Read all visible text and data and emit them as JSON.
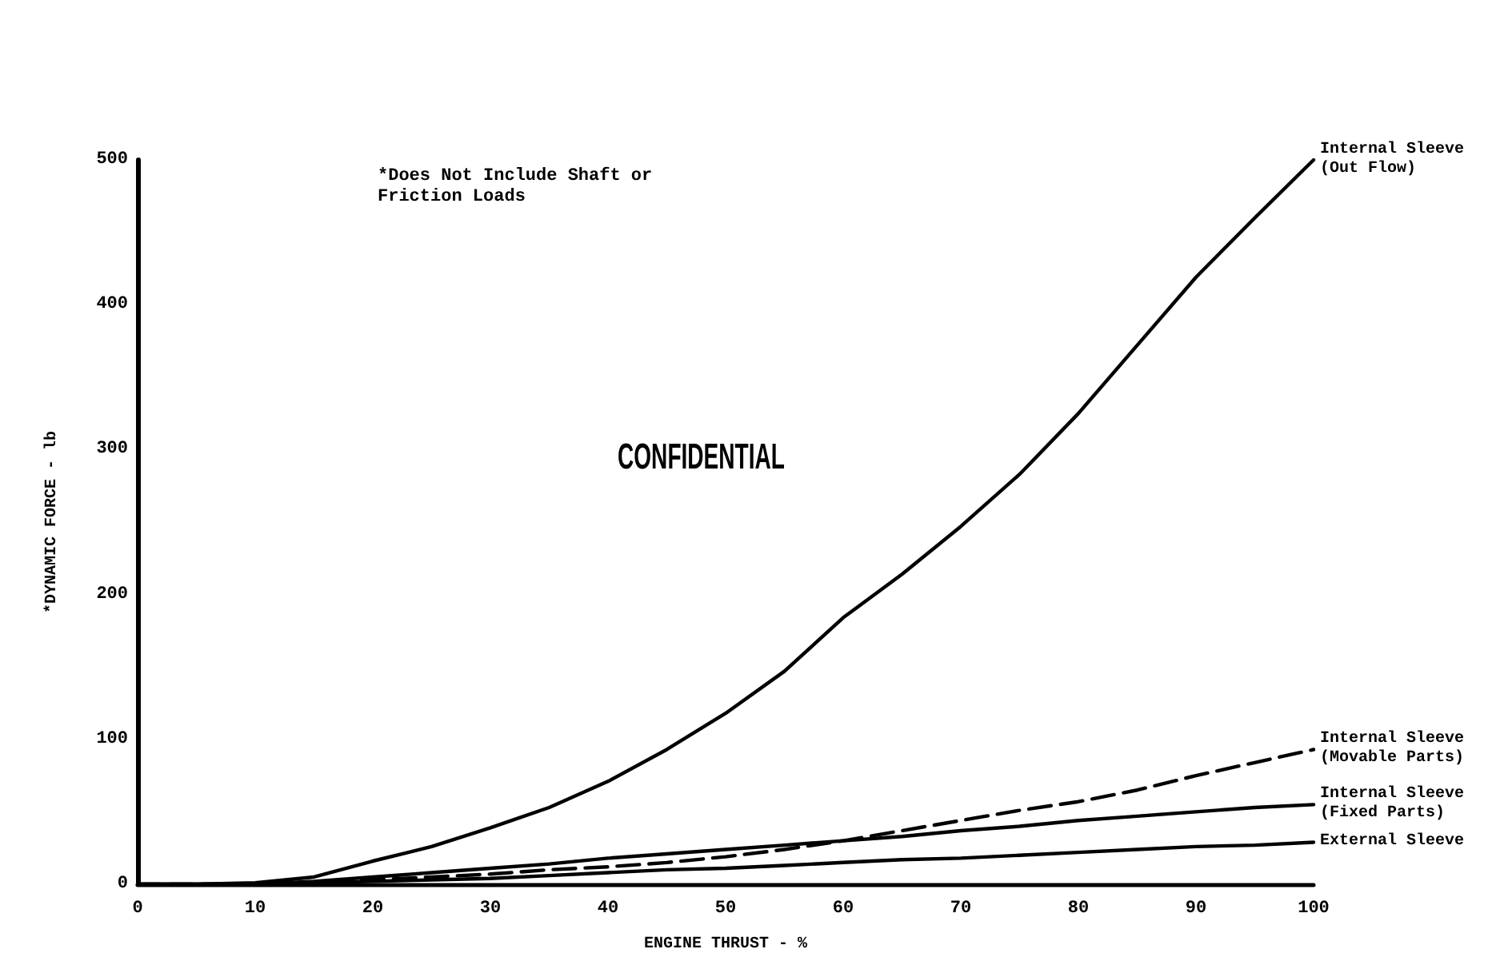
{
  "chart_data": {
    "type": "line",
    "xlabel": "ENGINE THRUST - %",
    "ylabel": "*DYNAMIC FORCE - lb",
    "annotations": [
      "*Does Not Include Shaft or Friction Loads",
      "CONFIDENTIAL"
    ],
    "x": [
      0,
      5,
      10,
      15,
      20,
      25,
      30,
      35,
      40,
      45,
      50,
      55,
      60,
      65,
      70,
      75,
      80,
      85,
      90,
      95,
      100
    ],
    "series": [
      {
        "name": "Internal Sleeve (Out Flow)",
        "color": "#000000",
        "values": [
          0,
          0,
          1,
          5,
          16,
          26,
          39,
          53,
          71,
          93,
          118,
          147,
          184,
          214,
          247,
          283,
          325,
          372,
          419,
          460,
          500
        ]
      },
      {
        "name": "Internal Sleeve (Movable Parts)",
        "color": "#000000",
        "line_style": "dashed",
        "values": [
          0,
          0,
          0,
          1,
          3,
          5,
          7,
          10,
          12,
          15,
          19,
          24,
          30,
          37,
          44,
          51,
          57,
          65,
          75,
          84,
          93
        ]
      },
      {
        "name": "Internal Sleeve (Fixed Parts)",
        "color": "#000000",
        "values": [
          0,
          0,
          0,
          2,
          5,
          8,
          11,
          14,
          18,
          21,
          24,
          27,
          30,
          33,
          37,
          40,
          44,
          47,
          50,
          53,
          55
        ]
      },
      {
        "name": "External Sleeve",
        "color": "#000000",
        "values": [
          0,
          0,
          0,
          1,
          2,
          3,
          4,
          6,
          8,
          10,
          11,
          13,
          15,
          17,
          18,
          20,
          22,
          24,
          26,
          27,
          29
        ]
      }
    ],
    "xlim": [
      0,
      100
    ],
    "xticks": [
      0,
      10,
      20,
      30,
      40,
      50,
      60,
      70,
      80,
      90,
      100
    ],
    "ylim": [
      0,
      500
    ],
    "yticks": [
      0,
      100,
      200,
      300,
      400,
      500
    ],
    "line_style": "solid",
    "marker": "none",
    "grid": false,
    "legend": false
  }
}
